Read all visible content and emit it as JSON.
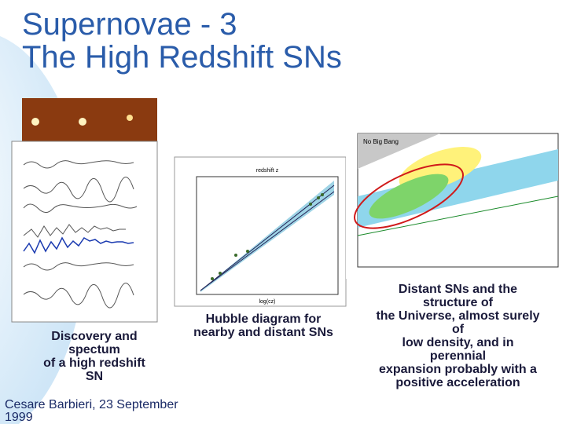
{
  "title": {
    "line1": "Supernovae - 3",
    "line2": "The High Redshift SNs"
  },
  "figures": [
    {
      "caption": [
        "Discovery and",
        "spectum",
        "of a high redshift",
        "SN"
      ]
    },
    {
      "caption": [
        "Hubble diagram for",
        "nearby and distant SNs"
      ],
      "inset_labels": [
        "redshift z",
        "log(cz)"
      ]
    },
    {
      "caption": [
        "Distant SNs and the",
        "structure of",
        "the Universe, almost surely",
        "of",
        "low density, and in",
        "perennial",
        "expansion probably with a",
        "positive acceleration"
      ],
      "inset_labels": [
        "No Big Bang"
      ]
    }
  ],
  "footer": {
    "line1": "Cesare Barbieri, 23 September",
    "line2": "1999"
  }
}
